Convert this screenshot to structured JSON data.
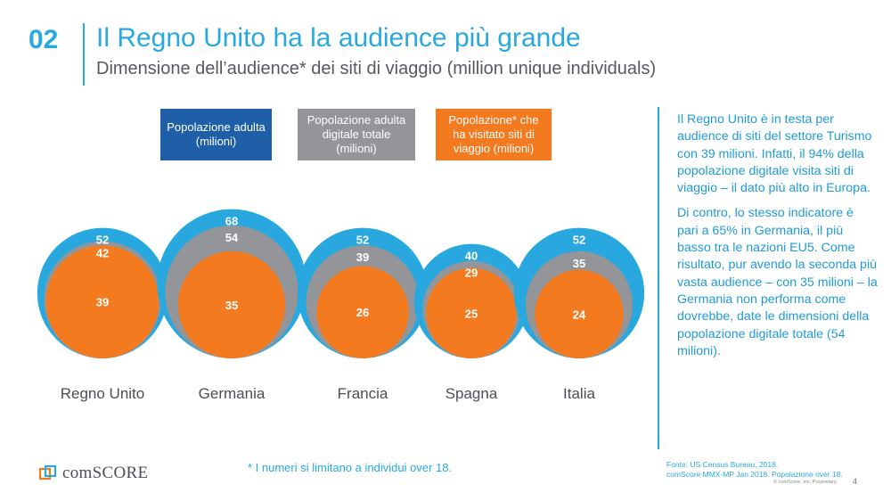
{
  "header": {
    "number": "02",
    "title": "Il Regno Unito ha la audience più grande",
    "subtitle_bold": "Dimensione",
    "subtitle_rest": " dell’audience* dei siti di viaggio (million unique individuals)"
  },
  "legend": [
    {
      "label": "Popolazione adulta (milioni)",
      "color": "#1f5fa8"
    },
    {
      "label": "Popolazione adulta digitale totale (milioni)",
      "color": "#939598"
    },
    {
      "label": "Popolazione* che ha visitato siti di viaggio (milioni)",
      "color": "#f47a20"
    }
  ],
  "chart_data": {
    "type": "bubble-nested",
    "categories": [
      "Regno Unito",
      "Germania",
      "Francia",
      "Spagna",
      "Italia"
    ],
    "series": [
      {
        "name": "Popolazione adulta (milioni)",
        "color": "#29a8e0",
        "values": [
          52,
          68,
          52,
          40,
          52
        ]
      },
      {
        "name": "Popolazione adulta digitale totale (milioni)",
        "color": "#939598",
        "values": [
          42,
          54,
          39,
          29,
          35
        ]
      },
      {
        "name": "Popolazione* che ha visitato siti di viaggio (milioni)",
        "color": "#f47a20",
        "values": [
          39,
          35,
          26,
          25,
          24
        ]
      }
    ]
  },
  "side_panel": {
    "p1": "Il Regno Unito è in testa per audience di siti del settore Turismo con 39 milioni. Infatti, il 94% della popolazione digitale visita siti di viaggio – il dato più alto in Europa.",
    "p2": "Di contro, lo stesso indicatore è pari a 65% in Germania, il più basso tra le nazioni EU5. Come risultato, pur avendo la seconda più vasta audience – con 35 milioni – la Germania non performa come dovrebbe, date le dimensioni della popolazione digitale totale (54 milioni)."
  },
  "footer": {
    "footnote": "* I numeri si limitano a individui over 18.",
    "source_line1": "Fonte: US Census Bureau, 2018.",
    "source_line2": "comScore MMX-MP Jan 2018. Popolazione over 18.",
    "copyright": "© comScore, Inc. Proprietary.",
    "page": "4",
    "logo_text": "comSCORE"
  }
}
